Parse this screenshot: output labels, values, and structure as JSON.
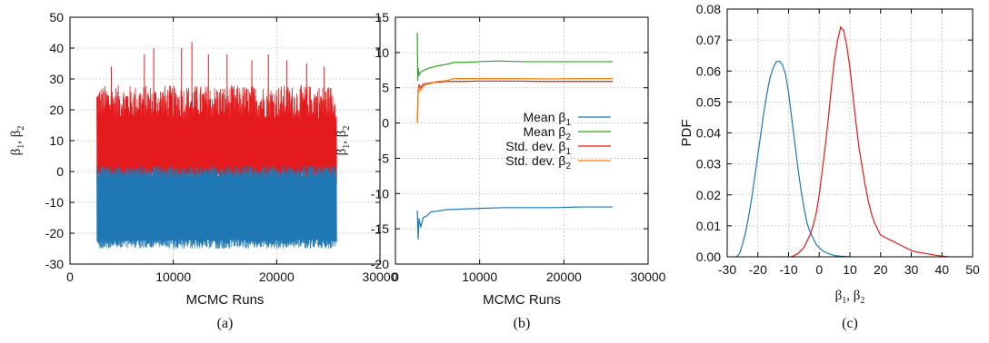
{
  "chart_data": [
    {
      "panel": "(a)",
      "type": "line",
      "title": "",
      "xlabel": "MCMC Runs",
      "ylabel": "β1, β2",
      "ylabel_parts": {
        "sym": "β",
        "sub1": "1",
        "sep": ", ",
        "sub2": "2"
      },
      "xlim": [
        0,
        30000
      ],
      "ylim": [
        -30,
        50
      ],
      "xticks": [
        0,
        10000,
        20000,
        30000
      ],
      "yticks": [
        -30,
        -20,
        -10,
        0,
        10,
        20,
        30,
        40,
        50
      ],
      "grid": true,
      "caption": "(a)",
      "series": [
        {
          "color": "#e41a1c",
          "x_range": [
            2600,
            25800
          ],
          "band_low": [
            -5,
            0
          ],
          "band_high": [
            17,
            28
          ],
          "peaks": [
            [
              4000,
              34
            ],
            [
              7200,
              38
            ],
            [
              8100,
              40
            ],
            [
              10800,
              40
            ],
            [
              11800,
              42
            ],
            [
              13400,
              38
            ],
            [
              15200,
              38
            ],
            [
              17600,
              36
            ],
            [
              19200,
              38
            ],
            [
              21000,
              36
            ],
            [
              22900,
              35
            ],
            [
              24600,
              34
            ]
          ]
        },
        {
          "color": "#1f78b4",
          "x_range": [
            2600,
            25800
          ],
          "band_low": [
            -25,
            -22
          ],
          "band_high": [
            -2,
            2
          ]
        }
      ]
    },
    {
      "panel": "(b)",
      "type": "line",
      "title": "",
      "xlabel": "MCMC Runs",
      "ylabel": "β1, β2",
      "ylabel_parts": {
        "sym": "β",
        "sub1": "1",
        "sep": ", ",
        "sub2": "2"
      },
      "xlim": [
        0,
        30000
      ],
      "ylim": [
        -20,
        15
      ],
      "xticks": [
        0,
        10000,
        20000,
        30000
      ],
      "yticks": [
        -20,
        -15,
        -10,
        -5,
        0,
        5,
        10,
        15
      ],
      "grid": true,
      "legend_position": "right",
      "caption": "(b)",
      "series": [
        {
          "name": "Mean β1",
          "legend_parts": {
            "text": "Mean β",
            "sub": "1"
          },
          "color": "#1f78b4",
          "x": [
            2600,
            2700,
            2800,
            3000,
            3300,
            3700,
            4200,
            5000,
            6000,
            8000,
            10000,
            13000,
            16000,
            19000,
            22000,
            25800
          ],
          "y": [
            -12.4,
            -16.5,
            -13.5,
            -14.8,
            -13.4,
            -13.2,
            -12.6,
            -12.5,
            -12.3,
            -12.2,
            -12.1,
            -12.0,
            -12.0,
            -12.0,
            -11.9,
            -11.9
          ]
        },
        {
          "name": "Mean β2",
          "legend_parts": {
            "text": "Mean β",
            "sub": "2"
          },
          "color": "#33a02c",
          "x": [
            2600,
            2650,
            2700,
            2800,
            3000,
            3400,
            4000,
            5000,
            6000,
            7000,
            8000,
            10000,
            12000,
            15000,
            18000,
            21000,
            25800
          ],
          "y": [
            12.8,
            6.0,
            7.8,
            6.8,
            7.2,
            7.5,
            7.8,
            8.1,
            8.3,
            8.6,
            8.6,
            8.7,
            8.8,
            8.7,
            8.7,
            8.7,
            8.7
          ]
        },
        {
          "name": "Std. dev. β1",
          "legend_parts": {
            "text": "Std. dev. β",
            "sub": "1"
          },
          "color": "#e41a1c",
          "x": [
            2600,
            2700,
            2800,
            3000,
            3300,
            3700,
            4200,
            5000,
            6000,
            8000,
            10000,
            14000,
            18000,
            22000,
            25800
          ],
          "y": [
            0.0,
            4.5,
            5.4,
            5.0,
            5.5,
            5.6,
            5.7,
            5.8,
            5.9,
            5.9,
            5.95,
            5.95,
            5.9,
            5.9,
            5.9
          ]
        },
        {
          "name": "Std. dev. β2",
          "legend_parts": {
            "text": "Std. dev. β",
            "sub": "2"
          },
          "color": "#ff7f00",
          "x": [
            2600,
            2700,
            2800,
            3000,
            3300,
            3700,
            4200,
            5000,
            6000,
            7000,
            8000,
            10000,
            14000,
            18000,
            22000,
            25800
          ],
          "y": [
            0.0,
            4.0,
            5.0,
            4.6,
            5.2,
            5.5,
            5.6,
            5.9,
            6.0,
            6.3,
            6.3,
            6.3,
            6.3,
            6.25,
            6.3,
            6.3
          ]
        }
      ]
    },
    {
      "panel": "(c)",
      "type": "line",
      "title": "",
      "xlabel": "β1, β2",
      "xlabel_parts": {
        "sym": "β",
        "sub1": "1",
        "sep": ", ",
        "sub2": "2"
      },
      "ylabel": "PDF",
      "xlim": [
        -30,
        50
      ],
      "ylim": [
        0,
        0.08
      ],
      "xticks": [
        -30,
        -20,
        -10,
        0,
        10,
        20,
        30,
        40,
        50
      ],
      "yticks": [
        0,
        0.01,
        0.02,
        0.03,
        0.04,
        0.05,
        0.06,
        0.07,
        0.08
      ],
      "ytick_labels": [
        "0.00",
        "0.01",
        "0.02",
        "0.03",
        "0.04",
        "0.05",
        "0.06",
        "0.07",
        "0.08"
      ],
      "grid": true,
      "caption": "(c)",
      "series": [
        {
          "color": "#1f78b4",
          "x": [
            -27,
            -26,
            -25,
            -24,
            -23,
            -22,
            -21,
            -20,
            -19,
            -18,
            -17,
            -16,
            -15,
            -14,
            -13,
            -12,
            -11,
            -10,
            -9,
            -8,
            -7,
            -6,
            -5,
            -4,
            -3,
            -2,
            -1,
            0,
            1,
            2,
            3,
            4,
            5,
            7,
            10
          ],
          "y": [
            0.0,
            0.001,
            0.004,
            0.008,
            0.013,
            0.019,
            0.026,
            0.033,
            0.04,
            0.047,
            0.053,
            0.058,
            0.061,
            0.063,
            0.0632,
            0.062,
            0.059,
            0.053,
            0.045,
            0.037,
            0.029,
            0.022,
            0.016,
            0.011,
            0.008,
            0.006,
            0.004,
            0.003,
            0.002,
            0.0015,
            0.001,
            0.0007,
            0.0004,
            0.0002,
            0.0
          ]
        },
        {
          "color": "#e41a1c",
          "x": [
            -9,
            -7,
            -5,
            -4,
            -3,
            -2,
            -1,
            0,
            1,
            2,
            3,
            4,
            5,
            6,
            7,
            8,
            9,
            10,
            11,
            12,
            13,
            14,
            15,
            16,
            17,
            18,
            19,
            20,
            22,
            24,
            26,
            28,
            30,
            32,
            35,
            38,
            42
          ],
          "y": [
            0.0,
            0.001,
            0.003,
            0.005,
            0.007,
            0.01,
            0.014,
            0.02,
            0.028,
            0.036,
            0.045,
            0.055,
            0.064,
            0.07,
            0.0742,
            0.073,
            0.068,
            0.061,
            0.052,
            0.043,
            0.035,
            0.029,
            0.023,
            0.018,
            0.014,
            0.011,
            0.009,
            0.007,
            0.006,
            0.005,
            0.004,
            0.003,
            0.002,
            0.0015,
            0.001,
            0.0005,
            0.0
          ]
        }
      ]
    }
  ]
}
